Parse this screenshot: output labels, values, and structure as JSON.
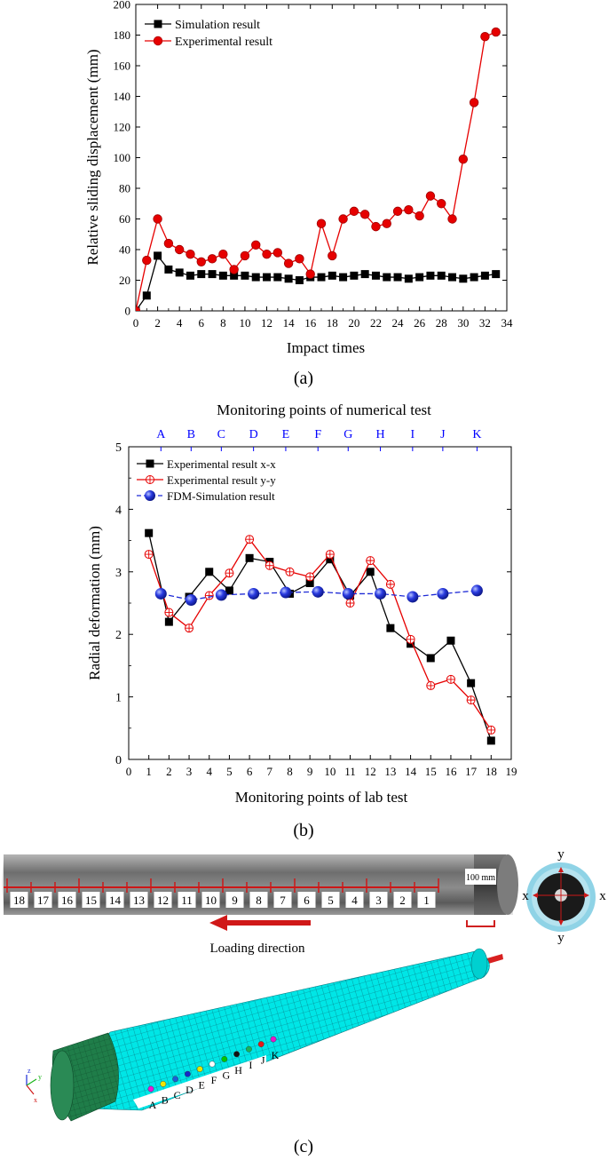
{
  "colors": {
    "black_series": "#000000",
    "red_series": "#e60000",
    "blue_series": "#1f2bd6",
    "top_axis_blue": "#0000ff",
    "mesh_cyan": "#00e5e5",
    "mesh_green": "#1d7a46",
    "rock_gray": "#8a8a8a",
    "scale_red": "#d02020",
    "arrow_red": "#d01818"
  },
  "chart_data": [
    {
      "type": "line",
      "panel_label": "(a)",
      "title": "",
      "xlabel": "Impact times",
      "ylabel": "Relative sliding displacement (mm)",
      "xlim": [
        0,
        34
      ],
      "ylim": [
        0,
        200
      ],
      "xticks": [
        0,
        2,
        4,
        6,
        8,
        10,
        12,
        14,
        16,
        18,
        20,
        22,
        24,
        26,
        28,
        30,
        32,
        34
      ],
      "yticks": [
        0,
        20,
        40,
        60,
        80,
        100,
        120,
        140,
        160,
        180,
        200
      ],
      "grid": false,
      "legend_position": "top-left",
      "x": [
        0,
        1,
        2,
        3,
        4,
        5,
        6,
        7,
        8,
        9,
        10,
        11,
        12,
        13,
        14,
        15,
        16,
        17,
        18,
        19,
        20,
        21,
        22,
        23,
        24,
        25,
        26,
        27,
        28,
        29,
        30,
        31,
        32,
        33
      ],
      "series": [
        {
          "name": "Simulation result",
          "color": "#000000",
          "marker": "square",
          "values": [
            0,
            10,
            36,
            27,
            25,
            23,
            24,
            24,
            23,
            23,
            23,
            22,
            22,
            22,
            21,
            20,
            22,
            22,
            23,
            22,
            23,
            24,
            23,
            22,
            22,
            21,
            22,
            23,
            23,
            22,
            21,
            22,
            23,
            24
          ]
        },
        {
          "name": "Experimental result",
          "color": "#e60000",
          "marker": "circle",
          "values": [
            0,
            33,
            60,
            44,
            40,
            37,
            32,
            34,
            37,
            27,
            36,
            43,
            37,
            38,
            31,
            34,
            24,
            57,
            36,
            60,
            65,
            63,
            55,
            57,
            65,
            66,
            62,
            75,
            70,
            60,
            99,
            136,
            179,
            182
          ]
        }
      ]
    },
    {
      "type": "line",
      "panel_label": "(b)",
      "title": "Monitoring points of numerical test",
      "xlabel": "Monitoring points of lab test",
      "ylabel": "Radial deformation (mm)",
      "xlim": [
        0,
        19
      ],
      "ylim": [
        0,
        5
      ],
      "xticks": [
        0,
        1,
        2,
        3,
        4,
        5,
        6,
        7,
        8,
        9,
        10,
        11,
        12,
        13,
        14,
        15,
        16,
        17,
        18,
        19
      ],
      "yticks": [
        0,
        1,
        2,
        3,
        4,
        5
      ],
      "top_axis_labels": [
        "A",
        "B",
        "C",
        "D",
        "E",
        "F",
        "G",
        "H",
        "I",
        "J",
        "K"
      ],
      "top_axis_positions": [
        1.6,
        3.1,
        4.6,
        6.2,
        7.8,
        9.4,
        10.9,
        12.5,
        14.1,
        15.6,
        17.3
      ],
      "grid": false,
      "legend_position": "top-left",
      "series": [
        {
          "name": "Experimental result x-x",
          "color": "#000000",
          "marker": "square",
          "x": [
            1,
            2,
            3,
            4,
            5,
            6,
            7,
            8,
            9,
            10,
            11,
            12,
            13,
            14,
            15,
            16,
            17,
            18
          ],
          "values": [
            3.62,
            2.2,
            2.6,
            3.0,
            2.7,
            3.22,
            3.16,
            2.65,
            2.82,
            3.2,
            2.62,
            3.0,
            2.1,
            1.85,
            1.62,
            1.9,
            1.22,
            0.3
          ]
        },
        {
          "name": "Experimental result y-y",
          "color": "#e60000",
          "marker": "crossed-circle",
          "x": [
            1,
            2,
            3,
            4,
            5,
            6,
            7,
            8,
            9,
            10,
            11,
            12,
            13,
            14,
            15,
            16,
            17,
            18
          ],
          "values": [
            3.28,
            2.35,
            2.1,
            2.62,
            2.98,
            3.52,
            3.1,
            3.0,
            2.92,
            3.28,
            2.5,
            3.18,
            2.8,
            1.92,
            1.18,
            1.28,
            0.95,
            0.47
          ]
        },
        {
          "name": "FDM-Simulation result",
          "color": "#1f2bd6",
          "marker": "sphere",
          "x": [
            1.6,
            3.1,
            4.6,
            6.2,
            7.8,
            9.4,
            10.9,
            12.5,
            14.1,
            15.6,
            17.3
          ],
          "values": [
            2.65,
            2.55,
            2.63,
            2.65,
            2.67,
            2.68,
            2.65,
            2.65,
            2.6,
            2.65,
            2.7
          ]
        }
      ]
    }
  ],
  "panel_c": {
    "label": "(c)",
    "rock_numbers": [
      "18",
      "17",
      "16",
      "15",
      "14",
      "13",
      "12",
      "11",
      "10",
      "9",
      "8",
      "7",
      "6",
      "5",
      "4",
      "3",
      "2",
      "1"
    ],
    "scale_label": "100 mm",
    "loading_direction": "Loading direction",
    "cross_section_labels": {
      "top": "y",
      "bottom": "y",
      "left": "x",
      "right": "x"
    },
    "mesh_points": [
      "A",
      "B",
      "C",
      "D",
      "E",
      "F",
      "G",
      "H",
      "I",
      "J",
      "K"
    ],
    "mesh_point_colors": [
      "#e619d8",
      "#f2e600",
      "#1a5fd6",
      "#1428c8",
      "#e6e600",
      "#ffffff",
      "#00c800",
      "#111111",
      "#19b45a",
      "#e61919",
      "#e619c8"
    ],
    "axis_triad": {
      "z": "z",
      "y": "y",
      "x": "x"
    }
  }
}
